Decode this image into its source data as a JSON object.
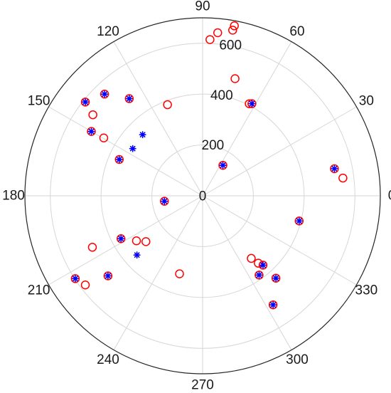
{
  "chart_data": {
    "type": "scatter",
    "coordinate_system": "polar",
    "angle_unit": "degrees",
    "theta_ticks": [
      0,
      30,
      60,
      90,
      120,
      150,
      180,
      210,
      240,
      270,
      300,
      330
    ],
    "theta_tick_labels": [
      "0",
      "30",
      "60",
      "90",
      "120",
      "150",
      "180",
      "210",
      "240",
      "270",
      "300",
      "330"
    ],
    "r_ticks": [
      0,
      200,
      400,
      600
    ],
    "r_tick_labels": [
      "0",
      "200",
      "400",
      "600"
    ],
    "rlim": [
      0,
      700
    ],
    "grid": true,
    "title": "",
    "series": [
      {
        "marker": "circle",
        "color": "#ff0000",
        "points": [
          {
            "theta": 87.3,
            "r": 615
          },
          {
            "theta": 84.7,
            "r": 644
          },
          {
            "theta": 79.4,
            "r": 680
          },
          {
            "theta": 79.7,
            "r": 662
          },
          {
            "theta": 74.5,
            "r": 478
          },
          {
            "theta": 63.1,
            "r": 406
          },
          {
            "theta": 61.8,
            "r": 411
          },
          {
            "theta": 56.3,
            "r": 144
          },
          {
            "theta": 11.6,
            "r": 530
          },
          {
            "theta": 7.2,
            "r": 557
          },
          {
            "theta": 111.1,
            "r": 384
          },
          {
            "theta": 127.1,
            "r": 479
          },
          {
            "theta": 134.0,
            "r": 556
          },
          {
            "theta": 141.4,
            "r": 591
          },
          {
            "theta": 143.6,
            "r": 537
          },
          {
            "theta": 150.0,
            "r": 506
          },
          {
            "theta": 149.7,
            "r": 451
          },
          {
            "theta": 156.5,
            "r": 358
          },
          {
            "theta": 188.1,
            "r": 152
          },
          {
            "theta": 207.7,
            "r": 363
          },
          {
            "theta": 214.2,
            "r": 315
          },
          {
            "theta": 218.9,
            "r": 287
          },
          {
            "theta": 205.0,
            "r": 479
          },
          {
            "theta": 220.2,
            "r": 488
          },
          {
            "theta": 217.2,
            "r": 580
          },
          {
            "theta": 213.0,
            "r": 598
          },
          {
            "theta": 253.5,
            "r": 320
          },
          {
            "theta": 345.4,
            "r": 393
          },
          {
            "theta": 307.9,
            "r": 312
          },
          {
            "theta": 309.6,
            "r": 344
          },
          {
            "theta": 311.1,
            "r": 362
          },
          {
            "theta": 305.5,
            "r": 383
          },
          {
            "theta": 311.7,
            "r": 434
          },
          {
            "theta": 302.9,
            "r": 511
          }
        ]
      },
      {
        "marker": "asterisk",
        "color": "#0000ff",
        "points": [
          {
            "theta": 56.3,
            "r": 144
          },
          {
            "theta": 61.8,
            "r": 411
          },
          {
            "theta": 11.6,
            "r": 530
          },
          {
            "theta": 127.1,
            "r": 479
          },
          {
            "theta": 134.0,
            "r": 556
          },
          {
            "theta": 141.4,
            "r": 591
          },
          {
            "theta": 150.0,
            "r": 506
          },
          {
            "theta": 156.5,
            "r": 358
          },
          {
            "theta": 188.1,
            "r": 152
          },
          {
            "theta": 207.7,
            "r": 363
          },
          {
            "theta": 220.2,
            "r": 488
          },
          {
            "theta": 213.0,
            "r": 598
          },
          {
            "theta": 345.4,
            "r": 393
          },
          {
            "theta": 311.1,
            "r": 362
          },
          {
            "theta": 305.5,
            "r": 383
          },
          {
            "theta": 302.9,
            "r": 511
          },
          {
            "theta": 311.7,
            "r": 434
          },
          {
            "theta": 146.0,
            "r": 332
          },
          {
            "theta": 222.0,
            "r": 348
          },
          {
            "theta": 134.5,
            "r": 337
          }
        ]
      }
    ]
  }
}
